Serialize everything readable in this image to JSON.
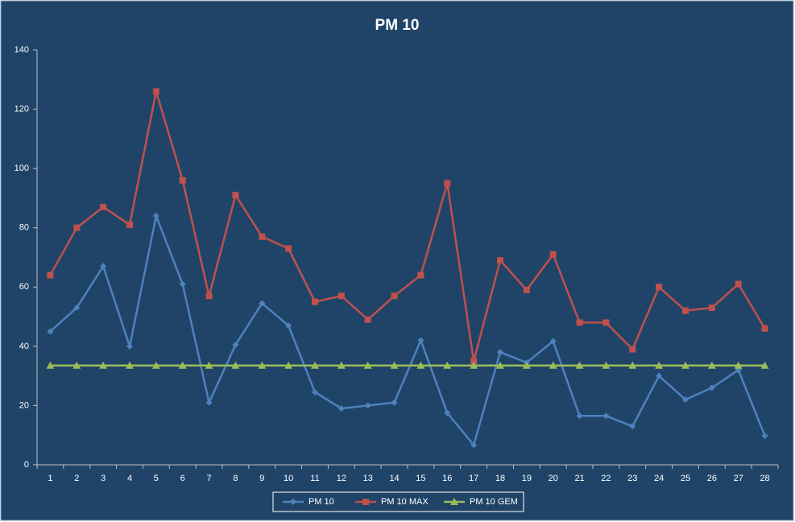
{
  "chart_data": {
    "type": "line",
    "title": "PM 10",
    "categories": [
      "1",
      "2",
      "3",
      "4",
      "5",
      "6",
      "7",
      "8",
      "9",
      "10",
      "11",
      "12",
      "13",
      "14",
      "15",
      "16",
      "17",
      "18",
      "19",
      "20",
      "21",
      "22",
      "23",
      "24",
      "25",
      "26",
      "27",
      "28"
    ],
    "series": [
      {
        "name": "PM 10",
        "color": "#4f81bd",
        "marker": "diamond",
        "values": [
          45,
          53,
          67,
          40,
          84,
          61,
          21,
          40.5,
          54.5,
          47,
          24.5,
          19,
          20,
          21,
          42,
          17.5,
          6.7,
          38,
          34.5,
          41.7,
          16.5,
          16.5,
          13,
          30,
          22,
          26,
          32,
          9.8
        ]
      },
      {
        "name": "PM 10 MAX",
        "color": "#c0504d",
        "marker": "square",
        "values": [
          64,
          80,
          87,
          81,
          126,
          96,
          57,
          91,
          77,
          73,
          55,
          57,
          49,
          57,
          64,
          95,
          35,
          69,
          59,
          71,
          48,
          48,
          39,
          60,
          52,
          53,
          61,
          46
        ]
      },
      {
        "name": "PM 10 GEM",
        "color": "#9bbb59",
        "marker": "triangle",
        "values": [
          33.5,
          33.5,
          33.5,
          33.5,
          33.5,
          33.5,
          33.5,
          33.5,
          33.5,
          33.5,
          33.5,
          33.5,
          33.5,
          33.5,
          33.5,
          33.5,
          33.5,
          33.5,
          33.5,
          33.5,
          33.5,
          33.5,
          33.5,
          33.5,
          33.5,
          33.5,
          33.5,
          33.5
        ]
      }
    ],
    "ylim": [
      0,
      140
    ],
    "yticks": [
      0,
      20,
      40,
      60,
      80,
      100,
      120,
      140
    ],
    "legend": "bottom"
  }
}
